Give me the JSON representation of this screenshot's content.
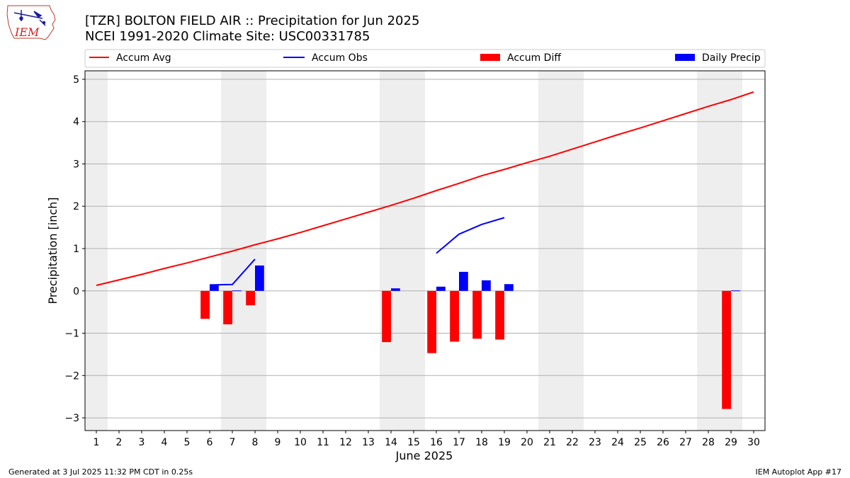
{
  "header": {
    "title_line1": "[TZR] BOLTON FIELD AIR :: Precipitation for Jun 2025",
    "title_line2": "NCEI 1991-2020 Climate Site: USC00331785"
  },
  "logo": {
    "text": "IEM"
  },
  "footer": {
    "left": "Generated at 3 Jul 2025 11:32 PM CDT in 0.25s",
    "right": "IEM Autoplot App #17"
  },
  "chart_data": {
    "type": "bar",
    "xlabel": "June 2025",
    "ylabel": "Precipitation [inch]",
    "xlim": [
      0.5,
      30.5
    ],
    "ylim": [
      -3.3,
      5.2
    ],
    "x_ticks": [
      1,
      2,
      3,
      4,
      5,
      6,
      7,
      8,
      9,
      10,
      11,
      12,
      13,
      14,
      15,
      16,
      17,
      18,
      19,
      20,
      21,
      22,
      23,
      24,
      25,
      26,
      27,
      28,
      29,
      30
    ],
    "y_ticks": [
      -3,
      -2,
      -1,
      0,
      1,
      2,
      3,
      4,
      5
    ],
    "grid": "horizontal",
    "legend_position": "top",
    "weekend_shading": [
      [
        0.5,
        1.5
      ],
      [
        6.5,
        8.5
      ],
      [
        13.5,
        15.5
      ],
      [
        20.5,
        22.5
      ],
      [
        27.5,
        29.5
      ]
    ],
    "series": [
      {
        "name": "Accum Avg",
        "kind": "line",
        "color": "#ff0000",
        "x": [
          1,
          2,
          3,
          4,
          5,
          6,
          7,
          8,
          9,
          10,
          11,
          12,
          13,
          14,
          15,
          16,
          17,
          18,
          19,
          20,
          21,
          22,
          23,
          24,
          25,
          26,
          27,
          28,
          29,
          30
        ],
        "values": [
          0.13,
          0.26,
          0.39,
          0.53,
          0.66,
          0.8,
          0.94,
          1.09,
          1.23,
          1.38,
          1.54,
          1.7,
          1.86,
          2.02,
          2.19,
          2.37,
          2.54,
          2.72,
          2.87,
          3.03,
          3.18,
          3.35,
          3.52,
          3.69,
          3.85,
          4.02,
          4.19,
          4.36,
          4.52,
          4.7
        ]
      },
      {
        "name": "Accum Obs",
        "kind": "line",
        "color": "#0000ff",
        "segments": [
          {
            "x": [
              6,
              7,
              8
            ],
            "values": [
              0.14,
              0.15,
              0.75
            ]
          },
          {
            "x": [
              16,
              17,
              18,
              19
            ],
            "values": [
              0.89,
              1.34,
              1.57,
              1.73
            ]
          }
        ]
      },
      {
        "name": "Accum Diff",
        "kind": "bar",
        "color": "#ff0000",
        "x": [
          6,
          7,
          8,
          14,
          16,
          17,
          18,
          19,
          29
        ],
        "values": [
          -0.66,
          -0.79,
          -0.34,
          -1.21,
          -1.47,
          -1.2,
          -1.13,
          -1.15,
          -2.79
        ]
      },
      {
        "name": "Daily Precip",
        "kind": "bar",
        "color": "#0000ff",
        "x": [
          6,
          7,
          8,
          14,
          16,
          17,
          18,
          19,
          29
        ],
        "values": [
          0.14,
          0.01,
          0.6,
          0.06,
          0.1,
          0.45,
          0.25,
          0.16,
          0.01
        ]
      }
    ]
  }
}
